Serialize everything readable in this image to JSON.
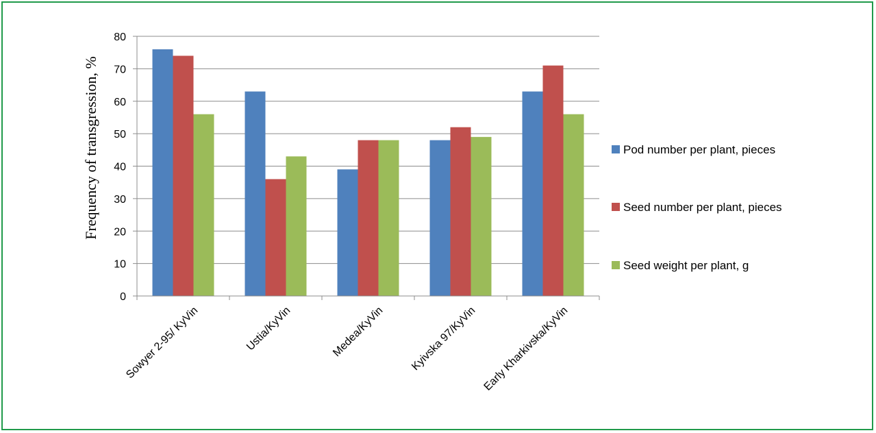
{
  "chart_data": {
    "type": "bar",
    "ylabel": "Frequency of transgression, %",
    "xlabel": "",
    "ylim": [
      0,
      80
    ],
    "yticks": [
      0,
      10,
      20,
      30,
      40,
      50,
      60,
      70,
      80
    ],
    "grid": true,
    "legend_position": "right",
    "categories": [
      "Sowyer 2-95/ KyVin",
      "Ustia/KyVin",
      "Medea/KyVin",
      "Kyivska 97/KyVin",
      "Early Kharkivska/KyVin"
    ],
    "series": [
      {
        "name": "Pod number per plant, pieces",
        "color": "#4f81bd",
        "values": [
          76,
          63,
          39,
          48,
          63
        ]
      },
      {
        "name": "Seed number per plant, pieces",
        "color": "#c0504d",
        "values": [
          74,
          36,
          48,
          52,
          71
        ]
      },
      {
        "name": "Seed weight per plant, g",
        "color": "#9bbb59",
        "values": [
          56,
          43,
          48,
          49,
          56
        ]
      }
    ]
  },
  "frame_color": "#1f9a4a"
}
